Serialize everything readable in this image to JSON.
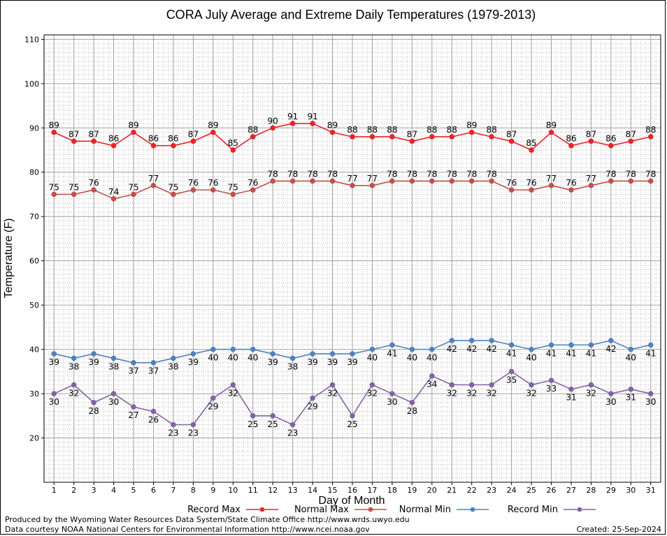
{
  "chart_data": {
    "type": "line",
    "title": "CORA July Average and Extreme Daily Temperatures (1979-2013)",
    "xlabel": "Day of Month",
    "ylabel": "Temperature (F)",
    "xlim": [
      0.5,
      31.5
    ],
    "ylim": [
      10,
      111
    ],
    "yticks": [
      20,
      30,
      40,
      50,
      60,
      70,
      80,
      90,
      100,
      110
    ],
    "xticks": [
      1,
      2,
      3,
      4,
      5,
      6,
      7,
      8,
      9,
      10,
      11,
      12,
      13,
      14,
      15,
      16,
      17,
      18,
      19,
      20,
      21,
      22,
      23,
      24,
      25,
      26,
      27,
      28,
      29,
      30,
      31
    ],
    "grid": true,
    "legend_position": "bottom",
    "x": [
      1,
      2,
      3,
      4,
      5,
      6,
      7,
      8,
      9,
      10,
      11,
      12,
      13,
      14,
      15,
      16,
      17,
      18,
      19,
      20,
      21,
      22,
      23,
      24,
      25,
      26,
      27,
      28,
      29,
      30,
      31
    ],
    "series": [
      {
        "name": "Record Max",
        "color": "#e8242a",
        "label_pos": "above",
        "values": [
          89,
          87,
          87,
          86,
          89,
          86,
          86,
          87,
          89,
          85,
          88,
          90,
          91,
          91,
          89,
          88,
          88,
          88,
          87,
          88,
          88,
          89,
          88,
          87,
          85,
          89,
          86,
          87,
          86,
          87,
          88
        ]
      },
      {
        "name": "Normal Max",
        "color": "#c0504d",
        "label_pos": "above",
        "values": [
          75,
          75,
          76,
          74,
          75,
          77,
          75,
          76,
          76,
          75,
          76,
          78,
          78,
          78,
          78,
          77,
          77,
          78,
          78,
          78,
          78,
          78,
          78,
          76,
          76,
          77,
          76,
          77,
          78,
          78,
          78
        ]
      },
      {
        "name": "Normal Min",
        "color": "#4f81bd",
        "label_pos": "below",
        "values": [
          39,
          38,
          39,
          38,
          37,
          37,
          38,
          39,
          40,
          40,
          40,
          39,
          38,
          39,
          39,
          39,
          40,
          41,
          40,
          40,
          42,
          42,
          42,
          41,
          40,
          41,
          41,
          41,
          42,
          40,
          41
        ]
      },
      {
        "name": "Record Min",
        "color": "#8064a2",
        "label_pos": "below",
        "values": [
          30,
          32,
          28,
          30,
          27,
          26,
          23,
          23,
          29,
          32,
          25,
          25,
          23,
          29,
          32,
          25,
          32,
          30,
          28,
          34,
          32,
          32,
          32,
          35,
          32,
          33,
          31,
          32,
          30,
          31,
          30
        ]
      }
    ]
  },
  "footer": {
    "produced_by": "Produced by the Wyoming Water Resources Data System/State Climate Office http://www.wrds.uwyo.edu",
    "data_courtesy": "Data courtesy NOAA National Centers for Environmental Information http://www.ncei.noaa.gov",
    "created": "Created:  25-Sep-2024"
  }
}
